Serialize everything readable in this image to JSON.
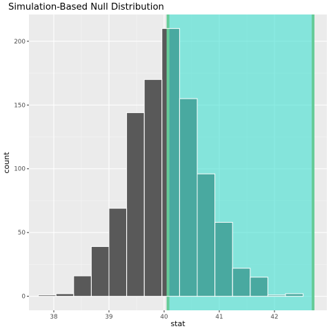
{
  "chart_data": {
    "type": "bar",
    "title": "Simulation-Based Null Distribution",
    "xlabel": "stat",
    "ylabel": "count",
    "xlim": [
      37.55,
      42.95
    ],
    "ylim": [
      -11,
      221
    ],
    "x_ticks": [
      38,
      39,
      40,
      41,
      42
    ],
    "x_tick_labels": [
      "38",
      "39",
      "40",
      "41",
      "42"
    ],
    "y_ticks": [
      0,
      50,
      100,
      150,
      200
    ],
    "y_tick_labels": [
      "0",
      "50",
      "100",
      "150",
      "200"
    ],
    "grid": true,
    "legend": "none",
    "bin_width": 0.32,
    "bins": [
      {
        "x0": 37.72,
        "x1": 38.04,
        "count": 1
      },
      {
        "x0": 38.04,
        "x1": 38.36,
        "count": 2
      },
      {
        "x0": 38.36,
        "x1": 38.68,
        "count": 16
      },
      {
        "x0": 38.68,
        "x1": 39.0,
        "count": 39
      },
      {
        "x0": 39.0,
        "x1": 39.32,
        "count": 69
      },
      {
        "x0": 39.32,
        "x1": 39.64,
        "count": 144
      },
      {
        "x0": 39.64,
        "x1": 39.96,
        "count": 170
      },
      {
        "x0": 39.96,
        "x1": 40.28,
        "count": 210
      },
      {
        "x0": 40.28,
        "x1": 40.6,
        "count": 155
      },
      {
        "x0": 40.6,
        "x1": 40.92,
        "count": 96
      },
      {
        "x0": 40.92,
        "x1": 41.24,
        "count": 58
      },
      {
        "x0": 41.24,
        "x1": 41.56,
        "count": 22
      },
      {
        "x0": 41.56,
        "x1": 41.88,
        "count": 15
      },
      {
        "x0": 41.88,
        "x1": 42.2,
        "count": 1
      },
      {
        "x0": 42.2,
        "x1": 42.52,
        "count": 2
      }
    ],
    "shade_region": {
      "from": 40.07,
      "to": 42.7,
      "color": "#40e0d0",
      "opacity": 0.6
    },
    "bound_lines": [
      40.07,
      42.7
    ],
    "bound_line_color": "#66cc99",
    "colors": {
      "bar_fill": "#595959",
      "bar_border": "#ffffff",
      "panel": "#ebebeb",
      "grid_major": "#ffffff",
      "grid_minor": "#f5f5f5"
    }
  }
}
